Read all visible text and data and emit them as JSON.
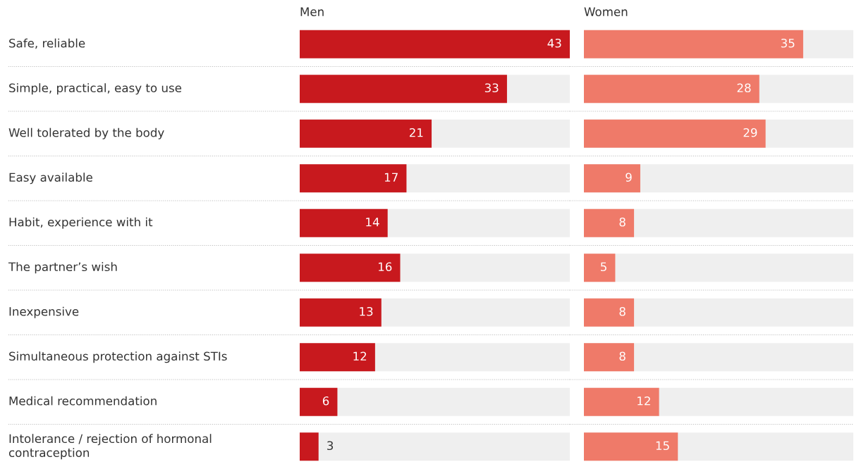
{
  "chart_data": [
    {
      "type": "bar",
      "orientation": "horizontal",
      "title": "Men",
      "categories": [
        "Safe, reliable",
        "Simple, practical, easy to use",
        "Well tolerated by the body",
        "Easy available",
        "Habit, experience with it",
        "The partner’s wish",
        "Inexpensive",
        "Simultaneous protection against STIs",
        "Medical recommendation",
        "Intolerance / rejection of hormonal\ncontraception"
      ],
      "values": [
        43,
        33,
        21,
        17,
        14,
        16,
        13,
        12,
        6,
        3
      ],
      "color": "#c8191e",
      "xlim": [
        0,
        43
      ],
      "data_labels": true
    },
    {
      "type": "bar",
      "orientation": "horizontal",
      "title": "Women",
      "categories": [
        null,
        null,
        null,
        null,
        null,
        null,
        null,
        null,
        null,
        null
      ],
      "values": [
        35,
        28,
        29,
        9,
        8,
        5,
        8,
        8,
        12,
        15
      ],
      "color": "#ef7a69",
      "xlim": [
        0,
        43
      ],
      "data_labels": true
    }
  ]
}
